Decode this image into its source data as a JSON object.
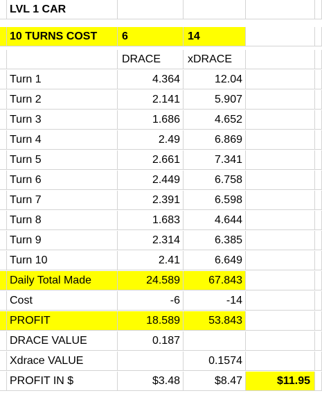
{
  "rows": [
    {
      "label": "LVL 1 CAR",
      "drace": "",
      "xdrace": "",
      "extra": ""
    },
    {
      "label": "10 TURNS COST",
      "drace": "6",
      "xdrace": "14",
      "extra": ""
    },
    {
      "label": "",
      "drace": "DRACE",
      "xdrace": "xDRACE",
      "extra": ""
    },
    {
      "label": "Turn 1",
      "drace": "4.364",
      "xdrace": "12.04",
      "extra": ""
    },
    {
      "label": "Turn 2",
      "drace": "2.141",
      "xdrace": "5.907",
      "extra": ""
    },
    {
      "label": "Turn 3",
      "drace": "1.686",
      "xdrace": "4.652",
      "extra": ""
    },
    {
      "label": "Turn 4",
      "drace": "2.49",
      "xdrace": "6.869",
      "extra": ""
    },
    {
      "label": "Turn 5",
      "drace": "2.661",
      "xdrace": "7.341",
      "extra": ""
    },
    {
      "label": "Turn 6",
      "drace": "2.449",
      "xdrace": "6.758",
      "extra": ""
    },
    {
      "label": "Turn 7",
      "drace": "2.391",
      "xdrace": "6.598",
      "extra": ""
    },
    {
      "label": "Turn 8",
      "drace": "1.683",
      "xdrace": "4.644",
      "extra": ""
    },
    {
      "label": "Turn 9",
      "drace": "2.314",
      "xdrace": "6.385",
      "extra": ""
    },
    {
      "label": "Turn 10",
      "drace": "2.41",
      "xdrace": "6.649",
      "extra": ""
    },
    {
      "label": "Daily Total Made",
      "drace": "24.589",
      "xdrace": "67.843",
      "extra": ""
    },
    {
      "label": "Cost",
      "drace": "-6",
      "xdrace": "-14",
      "extra": ""
    },
    {
      "label": "PROFIT",
      "drace": "18.589",
      "xdrace": "53.843",
      "extra": ""
    },
    {
      "label": "DRACE VALUE",
      "drace": "0.187",
      "xdrace": "",
      "extra": ""
    },
    {
      "label": "Xdrace VALUE",
      "drace": "",
      "xdrace": "0.1574",
      "extra": ""
    },
    {
      "label": "PROFIT IN $",
      "drace": "$3.48",
      "xdrace": "$8.47",
      "extra": "$11.95"
    }
  ],
  "highlight_color": "#ffff00"
}
